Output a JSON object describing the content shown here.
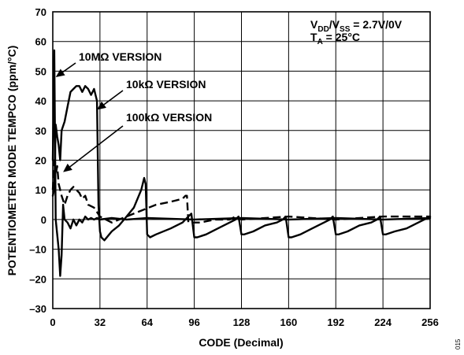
{
  "chart_data": {
    "type": "line",
    "title": "",
    "xlabel": "CODE (Decimal)",
    "ylabel": "POTENTIOMETER MODE TEMPCO (ppm/°C)",
    "xlim": [
      0,
      256
    ],
    "ylim": [
      -30,
      70
    ],
    "xticks": [
      0,
      32,
      64,
      96,
      128,
      160,
      192,
      224,
      256
    ],
    "yticks": [
      -30,
      -20,
      -10,
      0,
      10,
      20,
      30,
      40,
      50,
      60,
      70
    ],
    "grid": true,
    "conditions": {
      "line1_a": "V",
      "line1_a_sub": "DD",
      "line1_b": "/V",
      "line1_b_sub": "SS",
      "line1_c": " = 2.7V/0V",
      "line2_a": "T",
      "line2_a_sub": "A",
      "line2_c": " = 25°C"
    },
    "annotations": [
      {
        "text": "10MΩ VERSION",
        "target": [
          2,
          48
        ]
      },
      {
        "text": "10kΩ VERSION",
        "target": [
          30,
          37
        ]
      },
      {
        "text": "100kΩ VERSION",
        "target": [
          7,
          16
        ]
      }
    ],
    "series": [
      {
        "x": [
          0,
          1,
          2,
          3,
          4,
          5,
          6,
          8,
          10,
          12,
          14,
          16,
          18,
          20,
          22,
          24,
          26,
          28,
          30,
          31,
          32,
          33,
          35,
          40,
          45,
          50,
          55,
          60,
          62,
          63,
          64,
          66,
          70,
          80,
          88,
          92,
          94,
          96,
          98,
          104,
          112,
          120,
          124,
          126,
          128,
          130,
          136,
          144,
          152,
          156,
          158,
          160,
          162,
          168,
          176,
          184,
          188,
          190,
          192,
          194,
          200,
          208,
          216,
          220,
          222,
          224,
          226,
          232,
          240,
          248,
          252,
          256
        ],
        "y": [
          8,
          10,
          32,
          28,
          25,
          20,
          30,
          33,
          38,
          43,
          44,
          45,
          45,
          43,
          45,
          44,
          42,
          44,
          40,
          5,
          -4,
          -6,
          -7,
          -4,
          -2,
          1,
          4,
          10,
          14,
          12,
          -5,
          -6,
          -5,
          -3,
          -1,
          1,
          2,
          -6,
          -6,
          -5,
          -3,
          -1,
          0,
          1,
          -5,
          -5,
          -4,
          -2,
          -1,
          0,
          1,
          -6,
          -6,
          -5,
          -3,
          -1,
          0,
          1,
          -5,
          -5,
          -4,
          -2,
          -1,
          0,
          1,
          -5,
          -5,
          -4,
          -3,
          -1,
          0,
          1
        ]
      },
      {
        "x": [
          0,
          1,
          2,
          3,
          4,
          5,
          6,
          8,
          10,
          12,
          14,
          16,
          18,
          20,
          22,
          24,
          28,
          32,
          40,
          50,
          60,
          70,
          80,
          88,
          90,
          91,
          92,
          100,
          110,
          120,
          124,
          128,
          160,
          192,
          224,
          256
        ],
        "y": [
          10,
          20,
          15,
          18,
          12,
          10,
          8,
          5,
          8,
          10,
          11,
          10,
          9,
          7,
          8,
          5,
          4,
          1,
          -1,
          1,
          3,
          5,
          6,
          7,
          8,
          8,
          -1,
          -1,
          0,
          0,
          1,
          0,
          1,
          0,
          1,
          1
        ]
      },
      {
        "x": [
          0,
          1,
          2,
          3,
          4,
          5,
          6,
          7,
          8,
          10,
          12,
          14,
          16,
          18,
          20,
          22,
          24,
          26,
          28,
          30,
          32,
          40,
          50,
          64,
          96,
          128,
          160,
          192,
          224,
          256
        ],
        "y": [
          20,
          57,
          0,
          -5,
          -10,
          -19,
          -12,
          5,
          0,
          -1,
          -3,
          0,
          -2,
          0,
          -1,
          1,
          0,
          0.5,
          0,
          0.5,
          0,
          0.5,
          0,
          0.5,
          0,
          0.5,
          0,
          0.5,
          0,
          0.5
        ]
      }
    ]
  }
}
